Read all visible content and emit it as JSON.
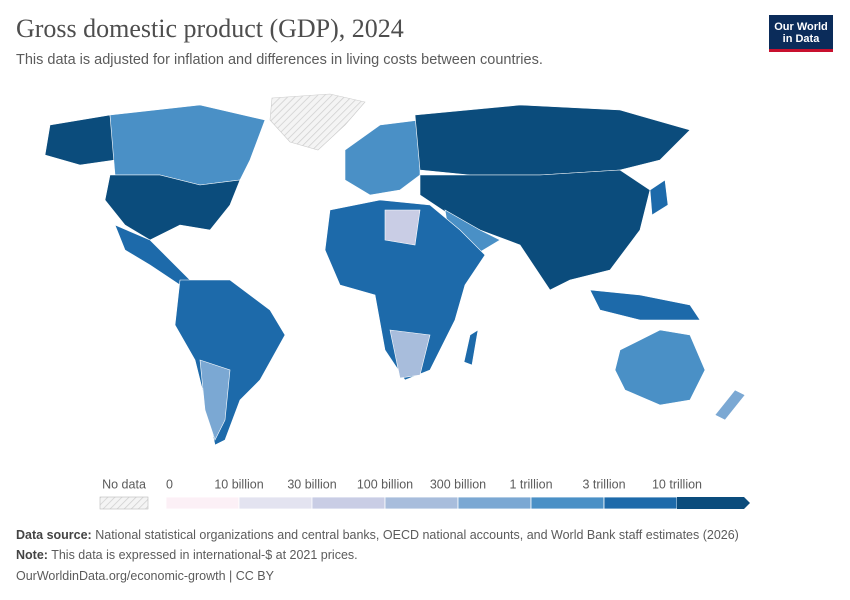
{
  "header": {
    "title": "Gross domestic product (GDP), 2024",
    "subtitle": "This data is adjusted for inflation and differences in living costs between countries.",
    "logo": [
      "Our World",
      "in Data"
    ]
  },
  "legend": {
    "no_data_label": "No data",
    "bins": [
      {
        "label": "0",
        "color": "#fcf0f6"
      },
      {
        "label": "10 billion",
        "color": "#e3e3f0"
      },
      {
        "label": "30 billion",
        "color": "#c9cde5"
      },
      {
        "label": "100 billion",
        "color": "#a8bddc"
      },
      {
        "label": "300 billion",
        "color": "#7ba8d3"
      },
      {
        "label": "1 trillion",
        "color": "#4a90c6"
      },
      {
        "label": "3 trillion",
        "color": "#1d6aaa"
      },
      {
        "label": "10 trillion",
        "color": "#0b4c7c"
      }
    ]
  },
  "footer": {
    "source_label": "Data source:",
    "source": "National statistical organizations and central banks, OECD national accounts, and World Bank staff estimates (2026)",
    "note_label": "Note:",
    "note": "This data is expressed in international-$ at 2021 prices.",
    "credit": "OurWorldinData.org/economic-growth | CC BY"
  }
}
